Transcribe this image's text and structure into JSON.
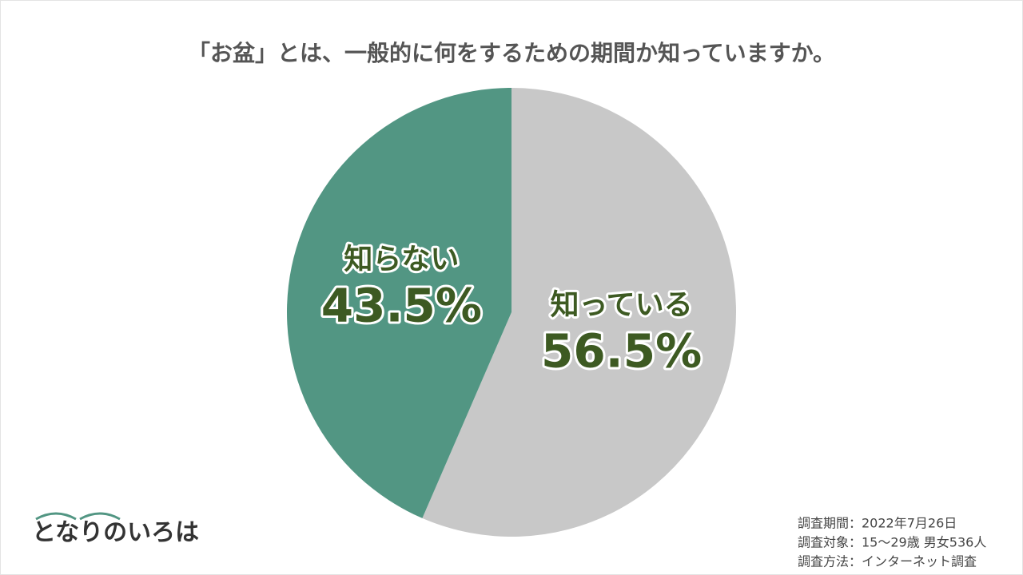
{
  "chart_data": {
    "type": "pie",
    "title": "「お盆」とは、一般的に何をするための期間か知っていますか。",
    "categories": [
      "知っている",
      "知らない"
    ],
    "values": [
      56.5,
      43.5
    ],
    "value_labels": [
      "56.5%",
      "43.5%"
    ],
    "colors": [
      "#c8c8c8",
      "#529683"
    ]
  },
  "notes": [
    "調査期間：2022年7月26日",
    "調査対象：15〜29歳 男女536人",
    "調査方法：インターネット調査"
  ],
  "logo": "となりのいろは"
}
